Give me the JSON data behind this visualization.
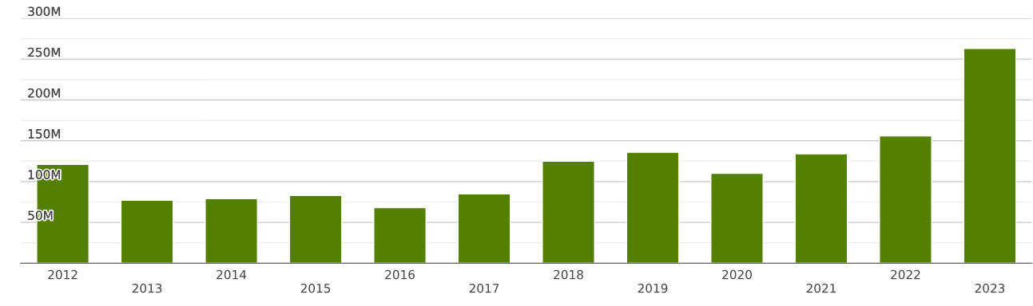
{
  "chart_data": {
    "type": "bar",
    "categories": [
      "2012",
      "2013",
      "2014",
      "2015",
      "2016",
      "2017",
      "2018",
      "2019",
      "2020",
      "2021",
      "2022",
      "2023"
    ],
    "values": [
      121,
      77,
      79,
      83,
      68,
      85,
      125,
      136,
      110,
      134,
      156,
      263
    ],
    "color": "#548001",
    "ylim": [
      0,
      300
    ],
    "yticks": [
      {
        "value": 25,
        "label": null
      },
      {
        "value": 50,
        "label": "50M"
      },
      {
        "value": 75,
        "label": null
      },
      {
        "value": 100,
        "label": "100M"
      },
      {
        "value": 125,
        "label": null
      },
      {
        "value": 150,
        "label": "150M"
      },
      {
        "value": 175,
        "label": null
      },
      {
        "value": 200,
        "label": "200M"
      },
      {
        "value": 225,
        "label": null
      },
      {
        "value": 250,
        "label": "250M"
      },
      {
        "value": 275,
        "label": null
      },
      {
        "value": 300,
        "label": "300M"
      }
    ],
    "grid": "y",
    "legend": false
  }
}
